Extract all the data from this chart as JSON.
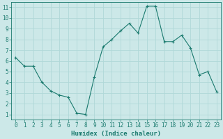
{
  "x": [
    0,
    1,
    2,
    3,
    4,
    5,
    6,
    7,
    8,
    9,
    10,
    11,
    12,
    13,
    14,
    15,
    16,
    17,
    18,
    19,
    20,
    21,
    22,
    23
  ],
  "y": [
    6.3,
    5.5,
    5.5,
    4.0,
    3.2,
    2.8,
    2.6,
    1.1,
    1.0,
    4.5,
    7.3,
    8.0,
    8.8,
    9.5,
    8.6,
    11.1,
    11.1,
    7.8,
    7.8,
    8.4,
    7.2,
    4.7,
    5.0,
    3.1
  ],
  "line_color": "#1a7a6e",
  "marker": "+",
  "marker_size": 3,
  "bg_color": "#cce8e8",
  "grid_color": "#b0d8d8",
  "xlabel": "Humidex (Indice chaleur)",
  "xlim": [
    -0.5,
    23.5
  ],
  "ylim": [
    0.5,
    11.5
  ],
  "yticks": [
    1,
    2,
    3,
    4,
    5,
    6,
    7,
    8,
    9,
    10,
    11
  ],
  "xticks": [
    0,
    1,
    2,
    3,
    4,
    5,
    6,
    7,
    8,
    9,
    10,
    11,
    12,
    13,
    14,
    15,
    16,
    17,
    18,
    19,
    20,
    21,
    22,
    23
  ],
  "tick_label_color": "#1a7a6e",
  "xlabel_color": "#1a7a6e",
  "tick_fontsize": 5.5,
  "xlabel_fontsize": 6.5
}
